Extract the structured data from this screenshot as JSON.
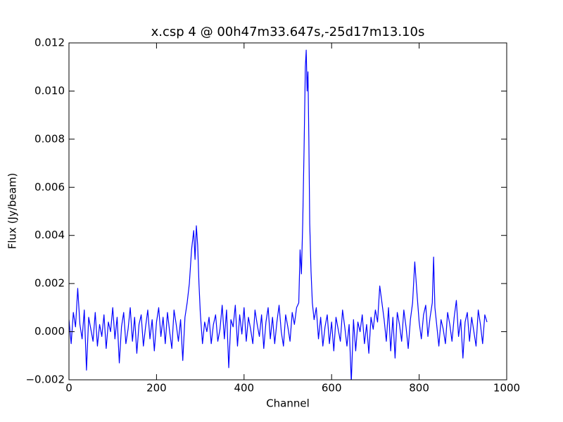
{
  "chart_data": {
    "type": "line",
    "title": "x.csp 4 @ 00h47m33.647s,-25d17m13.10s",
    "x_label": "Channel",
    "y_label": "Flux (Jy/beam)",
    "xlim": [
      0,
      1000
    ],
    "xticks": [
      0,
      200,
      400,
      600,
      800,
      1000
    ],
    "ylim": [
      -0.002,
      0.012
    ],
    "yticks": [
      {
        "value": -0.002,
        "label": "−0.002"
      },
      {
        "value": 0.0,
        "label": "0.000"
      },
      {
        "value": 0.002,
        "label": "0.002"
      },
      {
        "value": 0.004,
        "label": "0.004"
      },
      {
        "value": 0.006,
        "label": "0.006"
      },
      {
        "value": 0.008,
        "label": "0.008"
      },
      {
        "value": 0.01,
        "label": "0.010"
      },
      {
        "value": 0.012,
        "label": "0.012"
      }
    ],
    "grid": false,
    "series": [
      {
        "color": "#0000ff",
        "x": [
          0,
          5,
          10,
          15,
          20,
          25,
          30,
          35,
          40,
          45,
          50,
          55,
          60,
          65,
          70,
          75,
          80,
          85,
          90,
          95,
          100,
          105,
          110,
          115,
          120,
          125,
          130,
          135,
          140,
          145,
          150,
          155,
          160,
          165,
          170,
          175,
          180,
          185,
          190,
          195,
          200,
          205,
          210,
          215,
          220,
          225,
          230,
          235,
          240,
          245,
          250,
          255,
          260,
          265,
          270,
          275,
          280,
          285,
          288,
          291,
          294,
          297,
          300,
          305,
          310,
          315,
          320,
          325,
          330,
          335,
          340,
          345,
          350,
          355,
          360,
          365,
          370,
          375,
          380,
          385,
          390,
          395,
          400,
          405,
          410,
          415,
          420,
          425,
          430,
          435,
          440,
          445,
          450,
          455,
          460,
          465,
          470,
          475,
          480,
          485,
          490,
          495,
          500,
          505,
          510,
          515,
          520,
          525,
          528,
          531,
          534,
          537,
          540,
          542,
          544,
          546,
          548,
          550,
          553,
          556,
          560,
          565,
          570,
          575,
          580,
          585,
          590,
          595,
          600,
          605,
          610,
          615,
          620,
          625,
          630,
          635,
          640,
          645,
          650,
          655,
          660,
          665,
          670,
          675,
          680,
          685,
          690,
          695,
          700,
          705,
          710,
          715,
          720,
          725,
          730,
          735,
          740,
          745,
          750,
          755,
          760,
          765,
          770,
          775,
          780,
          785,
          790,
          795,
          800,
          805,
          810,
          815,
          820,
          825,
          830,
          833,
          836,
          840,
          845,
          850,
          855,
          860,
          865,
          870,
          875,
          880,
          885,
          890,
          895,
          900,
          905,
          910,
          915,
          920,
          925,
          930,
          935,
          940,
          945,
          950,
          955
        ],
        "values": [
          0.0005,
          -0.0005,
          0.0008,
          0.0002,
          0.0018,
          0.0003,
          -0.0003,
          0.0009,
          -0.0016,
          0.0006,
          0.0001,
          -0.0004,
          0.0008,
          -0.0006,
          0.0003,
          -0.0002,
          0.0007,
          -0.0007,
          0.0004,
          0.0,
          0.001,
          -0.0003,
          0.0006,
          -0.0013,
          0.0002,
          0.0008,
          -0.0005,
          0.0001,
          0.001,
          -0.0004,
          0.0006,
          -0.0009,
          0.0003,
          0.0007,
          -0.0006,
          0.0002,
          0.0009,
          -0.0003,
          0.0005,
          -0.0008,
          0.0004,
          0.001,
          -0.0002,
          0.0006,
          -0.0005,
          0.0008,
          0.0,
          -0.0007,
          0.0009,
          0.0003,
          -0.0004,
          0.0005,
          -0.0012,
          0.0006,
          0.0012,
          0.002,
          0.0034,
          0.0042,
          0.003,
          0.0044,
          0.0036,
          0.002,
          0.0008,
          -0.0005,
          0.0004,
          0.0,
          0.0006,
          -0.0005,
          0.0003,
          0.0007,
          -0.0004,
          0.0001,
          0.0011,
          -0.0003,
          0.0009,
          -0.0015,
          0.0005,
          0.0002,
          0.0011,
          -0.0006,
          0.0007,
          -0.0001,
          0.001,
          -0.0004,
          0.0006,
          0.0001,
          -0.0005,
          0.0009,
          0.0003,
          -0.0002,
          0.0007,
          -0.0007,
          0.0004,
          0.001,
          -0.0003,
          0.0006,
          -0.0005,
          0.0004,
          0.0011,
          0.0,
          -0.0006,
          0.0007,
          0.0002,
          -0.0004,
          0.0008,
          0.0003,
          0.001,
          0.0012,
          0.0034,
          0.0024,
          0.0045,
          0.0075,
          0.011,
          0.0117,
          0.01,
          0.0108,
          0.008,
          0.0045,
          0.0025,
          0.0012,
          0.0005,
          0.001,
          -0.0003,
          0.0006,
          -0.0006,
          0.0002,
          0.0007,
          -0.0005,
          0.0004,
          -0.0008,
          0.0006,
          0.0001,
          -0.0004,
          0.0009,
          0.0002,
          -0.0006,
          0.0003,
          -0.0021,
          0.0005,
          -0.0008,
          0.0004,
          0.0,
          0.0007,
          -0.0005,
          0.0003,
          -0.0009,
          0.0006,
          0.0001,
          0.0009,
          0.0004,
          0.0019,
          0.0012,
          0.0005,
          -0.0004,
          0.001,
          -0.0008,
          0.0006,
          -0.0011,
          0.0008,
          0.0003,
          -0.0004,
          0.0009,
          0.0002,
          -0.0007,
          0.0005,
          0.0012,
          0.0029,
          0.0016,
          0.0004,
          -0.0003,
          0.0007,
          0.0011,
          -0.0002,
          0.0006,
          0.0012,
          0.0031,
          0.001,
          0.0003,
          -0.0006,
          0.0005,
          0.0001,
          -0.0005,
          0.0008,
          0.0003,
          -0.0004,
          0.0006,
          0.0013,
          -0.0002,
          0.0005,
          -0.0011,
          0.0004,
          0.0008,
          -0.0004,
          0.0006,
          0.0,
          -0.0006,
          0.0009,
          0.0003,
          -0.0005,
          0.0007,
          0.0004
        ]
      }
    ]
  }
}
